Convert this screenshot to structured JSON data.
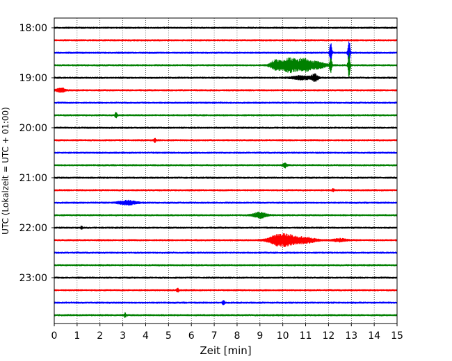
{
  "chart_data": {
    "type": "line",
    "title": "",
    "xlabel": "Zeit  [min]",
    "ylabel": "UTC (Lokalzeit = UTC + 01:00)",
    "xlim": [
      0,
      15
    ],
    "xticks": [
      0,
      1,
      2,
      3,
      4,
      5,
      6,
      7,
      8,
      9,
      10,
      11,
      12,
      13,
      14,
      15
    ],
    "yticks": [
      "18:00",
      "19:00",
      "20:00",
      "21:00",
      "22:00",
      "23:00"
    ],
    "grid": "vertical dotted",
    "trace_interval_min": 15,
    "colors": [
      "#000000",
      "#ff0000",
      "#0000ff",
      "#008000"
    ],
    "traces": [
      {
        "start": "18:00",
        "color": "#000000",
        "events": []
      },
      {
        "start": "18:15",
        "color": "#ff0000",
        "events": []
      },
      {
        "start": "18:30",
        "color": "#0000ff",
        "events": [
          {
            "t": 12.1,
            "amp": 16,
            "width": 0.05
          },
          {
            "t": 12.9,
            "amp": 20,
            "width": 0.05
          }
        ]
      },
      {
        "start": "18:45",
        "color": "#008000",
        "events": [
          {
            "t": 9.7,
            "amp": 7,
            "width": 0.25
          },
          {
            "t": 10.3,
            "amp": 10,
            "width": 0.35
          },
          {
            "t": 10.9,
            "amp": 9,
            "width": 0.3
          },
          {
            "t": 11.5,
            "amp": 5,
            "width": 0.4
          },
          {
            "t": 12.1,
            "amp": 14,
            "width": 0.05
          },
          {
            "t": 12.9,
            "amp": 17,
            "width": 0.05
          }
        ]
      },
      {
        "start": "19:00",
        "color": "#000000",
        "events": [
          {
            "t": 10.8,
            "amp": 3,
            "width": 0.4
          },
          {
            "t": 11.4,
            "amp": 5,
            "width": 0.15
          }
        ]
      },
      {
        "start": "19:15",
        "color": "#ff0000",
        "events": [
          {
            "t": 0.3,
            "amp": 3,
            "width": 0.2
          }
        ]
      },
      {
        "start": "19:30",
        "color": "#0000ff",
        "events": []
      },
      {
        "start": "19:45",
        "color": "#008000",
        "events": [
          {
            "t": 2.7,
            "amp": 4,
            "width": 0.05
          }
        ]
      },
      {
        "start": "20:00",
        "color": "#000000",
        "events": []
      },
      {
        "start": "20:15",
        "color": "#ff0000",
        "events": [
          {
            "t": 4.4,
            "amp": 3,
            "width": 0.05
          }
        ]
      },
      {
        "start": "20:30",
        "color": "#0000ff",
        "events": []
      },
      {
        "start": "20:45",
        "color": "#008000",
        "events": [
          {
            "t": 10.1,
            "amp": 3,
            "width": 0.1
          }
        ]
      },
      {
        "start": "21:00",
        "color": "#000000",
        "events": []
      },
      {
        "start": "21:15",
        "color": "#ff0000",
        "events": [
          {
            "t": 12.2,
            "amp": 2,
            "width": 0.05
          }
        ]
      },
      {
        "start": "21:30",
        "color": "#0000ff",
        "events": [
          {
            "t": 3.2,
            "amp": 3,
            "width": 0.4
          }
        ]
      },
      {
        "start": "21:45",
        "color": "#008000",
        "events": [
          {
            "t": 9.0,
            "amp": 4,
            "width": 0.3
          }
        ]
      },
      {
        "start": "22:00",
        "color": "#000000",
        "events": [
          {
            "t": 1.2,
            "amp": 2,
            "width": 0.05
          }
        ]
      },
      {
        "start": "22:15",
        "color": "#ff0000",
        "events": [
          {
            "t": 9.7,
            "amp": 5,
            "width": 0.4
          },
          {
            "t": 10.2,
            "amp": 7,
            "width": 0.45
          },
          {
            "t": 11.0,
            "amp": 4,
            "width": 0.45
          },
          {
            "t": 12.5,
            "amp": 2,
            "width": 0.3
          }
        ]
      },
      {
        "start": "22:30",
        "color": "#0000ff",
        "events": []
      },
      {
        "start": "22:45",
        "color": "#008000",
        "events": []
      },
      {
        "start": "23:00",
        "color": "#000000",
        "events": []
      },
      {
        "start": "23:15",
        "color": "#ff0000",
        "events": [
          {
            "t": 5.4,
            "amp": 3,
            "width": 0.05
          }
        ]
      },
      {
        "start": "23:30",
        "color": "#0000ff",
        "events": [
          {
            "t": 7.4,
            "amp": 3,
            "width": 0.05
          }
        ]
      },
      {
        "start": "23:45",
        "color": "#008000",
        "events": [
          {
            "t": 3.1,
            "amp": 3,
            "width": 0.05
          }
        ]
      }
    ]
  }
}
